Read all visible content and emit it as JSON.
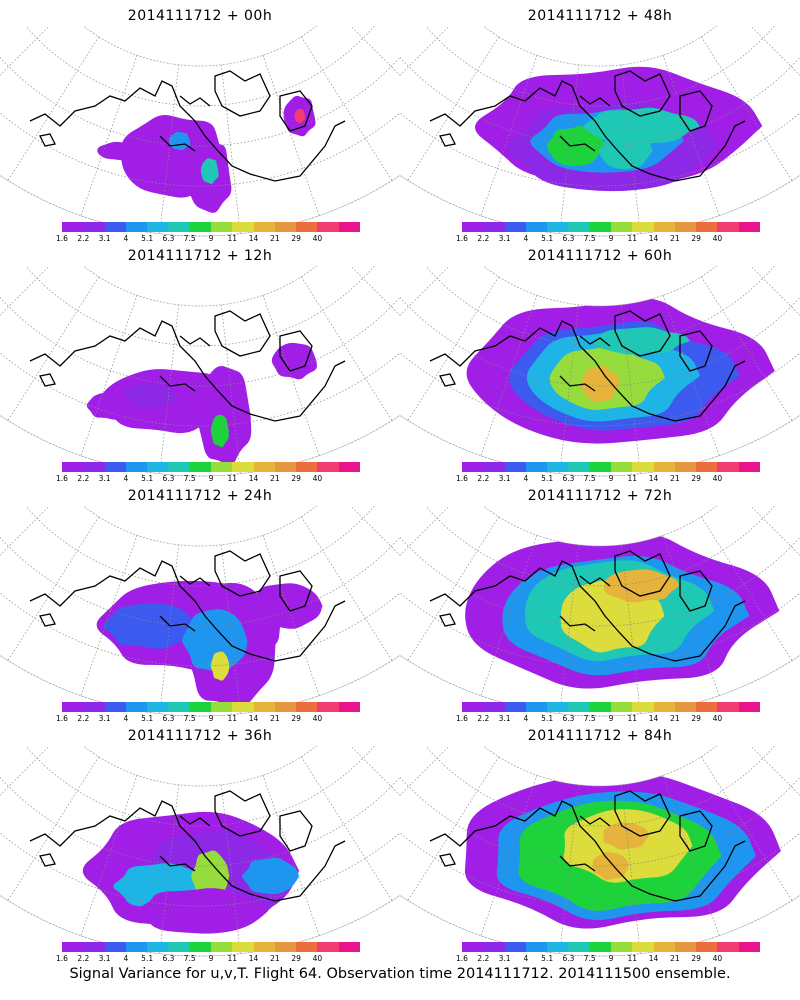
{
  "panels": [
    {
      "title": "2014111712 + 00h",
      "stage": 0
    },
    {
      "title": "2014111712 + 48h",
      "stage": 4
    },
    {
      "title": "2014111712 + 12h",
      "stage": 1
    },
    {
      "title": "2014111712 + 60h",
      "stage": 5
    },
    {
      "title": "2014111712 + 24h",
      "stage": 2
    },
    {
      "title": "2014111712 + 72h",
      "stage": 6
    },
    {
      "title": "2014111712 + 36h",
      "stage": 3
    },
    {
      "title": "2014111712 + 84h",
      "stage": 7
    }
  ],
  "colorbar": {
    "colors": [
      "#a01ee6",
      "#8c28e6",
      "#3c5af0",
      "#1e96f0",
      "#1eb4e6",
      "#1ec8b4",
      "#1ed23c",
      "#96dc3c",
      "#dcdc3c",
      "#e6b43c",
      "#e6963c",
      "#eb6e3c",
      "#f03c6e",
      "#eb148c"
    ],
    "ticks": [
      "1.6",
      "2.2",
      "3.1",
      "4",
      "5.1",
      "6.3",
      "7.5",
      "9",
      "11",
      "14",
      "21",
      "29",
      "40"
    ]
  },
  "caption": "Signal Variance for u,v,T. Flight 64. Observation time 2014111712. 2014111500 ensemble."
}
